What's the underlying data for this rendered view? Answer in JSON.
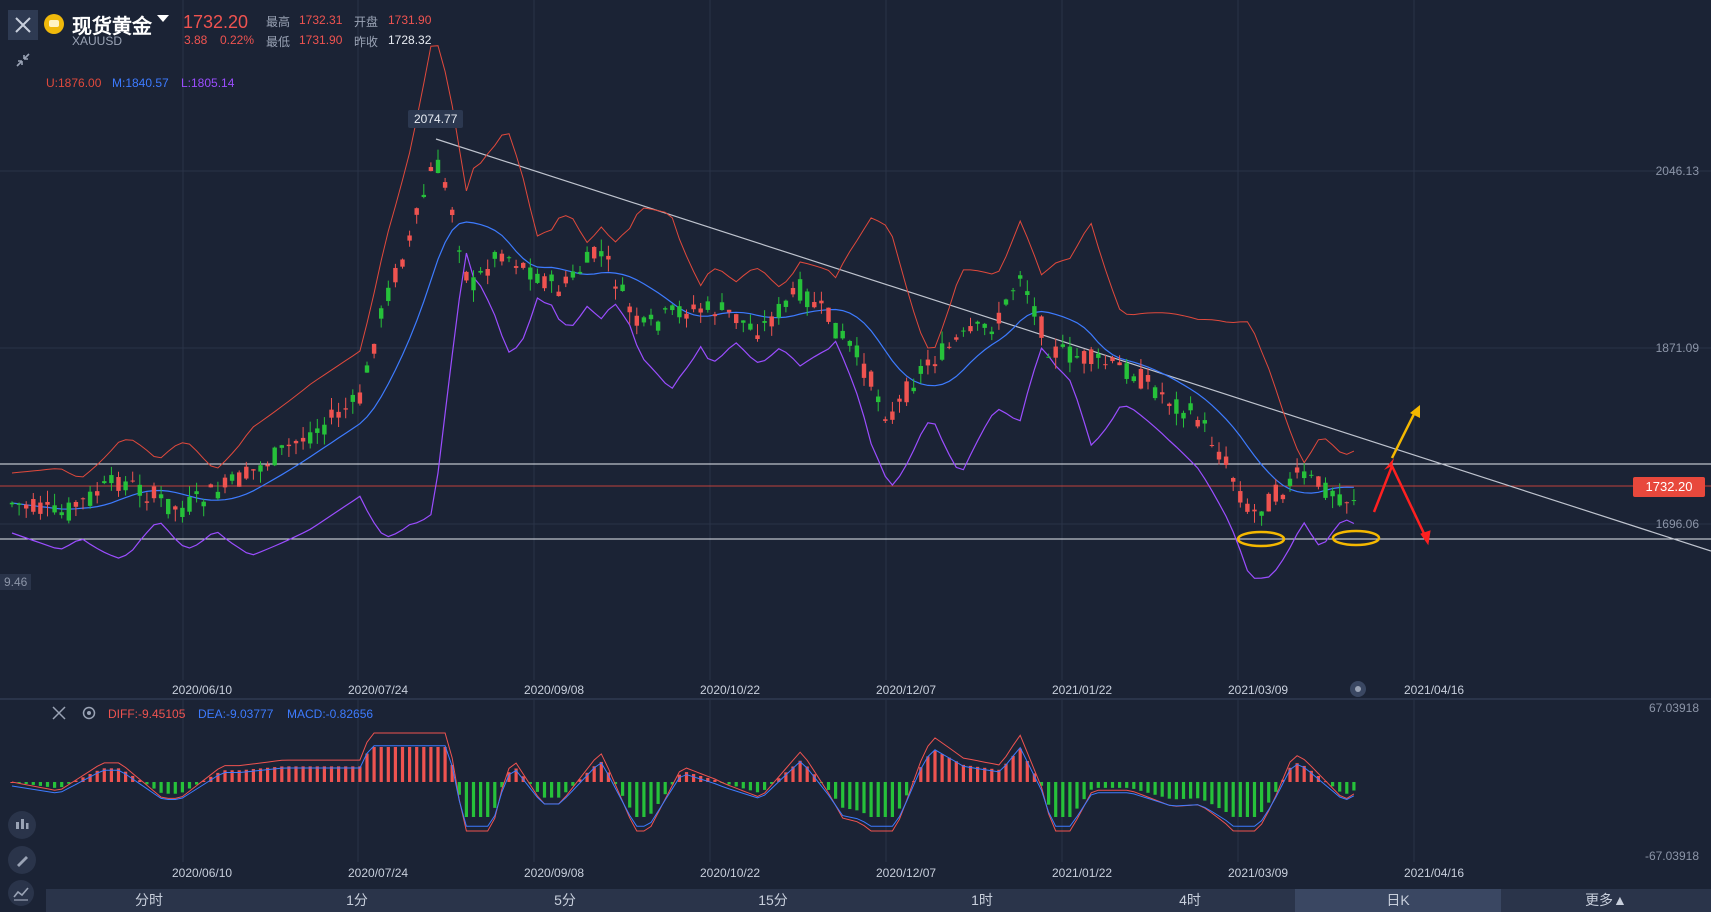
{
  "instrument": {
    "name": "现货黄金",
    "symbol": "XAUUSD",
    "price": "1732.20",
    "change": "3.88",
    "change_pct": "0.22%",
    "high_label": "最高",
    "high": "1732.31",
    "open_label": "开盘",
    "open": "1731.90",
    "low_label": "最低",
    "low": "1731.90",
    "prev_close_label": "昨收",
    "prev_close": "1728.32"
  },
  "bollinger": {
    "upper": "U:1876.00",
    "middle": "M:1840.57",
    "lower": "L:1805.14"
  },
  "price_axis": {
    "ticks": [
      "2046.13",
      "1871.09",
      "1696.06"
    ],
    "current_tag": "1732.20",
    "left_cut_label": "9.46"
  },
  "peak_tooltip": "2074.77",
  "dates": [
    "2020/06/10",
    "2020/07/24",
    "2020/09/08",
    "2020/10/22",
    "2020/12/07",
    "2021/01/22",
    "2021/03/09",
    "2021/04/16"
  ],
  "macd": {
    "diff": "DIFF:-9.45105",
    "dea": "DEA:-9.03777",
    "macd": "MACD:-0.82656",
    "axis_top": "67.03918",
    "axis_bottom": "-67.03918"
  },
  "timeframes": [
    "分时",
    "1分",
    "5分",
    "15分",
    "1时",
    "4时",
    "日K",
    "更多▲"
  ],
  "active_timeframe": "日K",
  "colors": {
    "background": "#1b2335",
    "up": "#ef5350",
    "down": "#26c13a",
    "upper_band": "#e0493c",
    "middle_band": "#3d7bff",
    "lower_band": "#9b4dff",
    "annotation_yellow": "#f5b800",
    "annotation_red": "#ff2020"
  }
}
